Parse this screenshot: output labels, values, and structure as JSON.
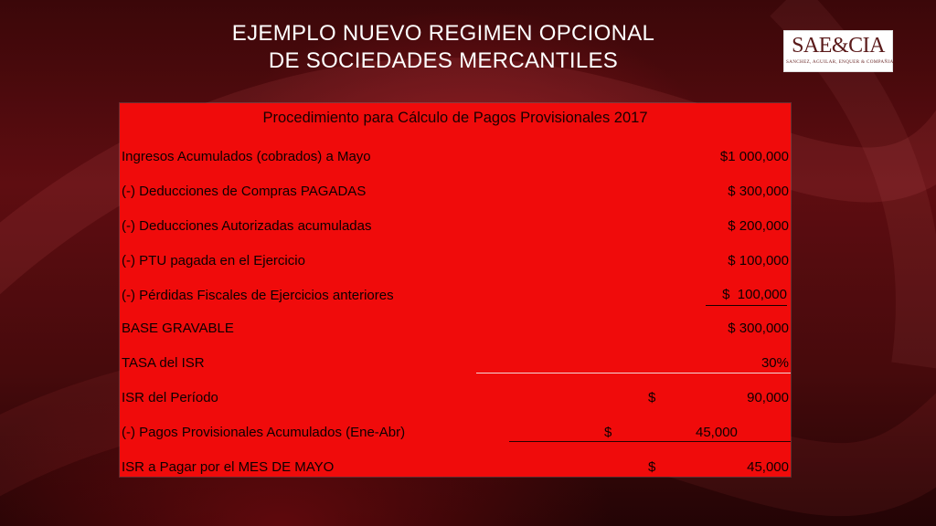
{
  "title": {
    "line1": "EJEMPLO NUEVO REGIMEN OPCIONAL",
    "line2": "DE SOCIEDADES MERCANTILES"
  },
  "logo": {
    "name": "SAE&CIA",
    "subtitle": "SANCHEZ, AGUILAR, ENQUER & COMPAÑIA"
  },
  "table": {
    "title": "Procedimiento para Cálculo de Pagos Provisionales 2017",
    "rows": [
      {
        "label": "Ingresos Acumulados (cobrados) a Mayo",
        "value": "$1 000,000"
      },
      {
        "label": "(-) Deducciones de Compras PAGADAS",
        "value": "$ 300,000"
      },
      {
        "label": "(-) Deducciones Autorizadas acumuladas",
        "value": "$ 200,000"
      },
      {
        "label": "(-) PTU pagada en el Ejercicio",
        "value": "$ 100,000"
      },
      {
        "label": "(-) Pérdidas Fiscales de Ejercicios anteriores",
        "value": "$  100,000"
      },
      {
        "label": "BASE GRAVABLE",
        "value": "$ 300,000"
      },
      {
        "label": "TASA del ISR",
        "value": "30%"
      },
      {
        "label": "ISR del Período",
        "currency": "$",
        "value": "90,000"
      },
      {
        "label": "(-) Pagos Provisionales Acumulados (Ene-Abr)",
        "currency": "$",
        "value": "45,000"
      },
      {
        "label": "ISR a Pagar por el MES DE MAYO",
        "currency": "$",
        "value": "45,000"
      }
    ]
  },
  "colors": {
    "table_background": "#f00b0b",
    "slide_background": "#4a0a0c",
    "title_text": "#ffffff"
  }
}
